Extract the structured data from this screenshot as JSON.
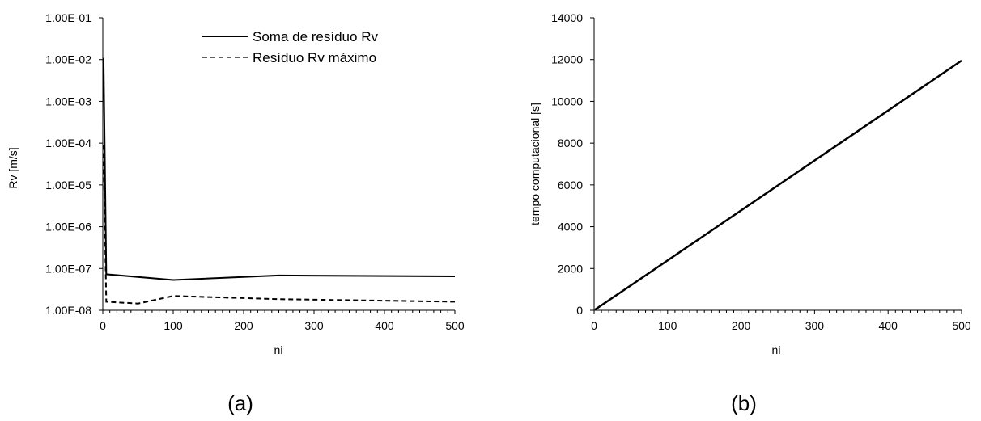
{
  "chart_data": [
    {
      "type": "line",
      "caption": "(a)",
      "xlabel": "ni",
      "ylabel": "Rv [m/s]",
      "xlim": [
        0,
        500
      ],
      "xticks": [
        0,
        100,
        200,
        300,
        400,
        500
      ],
      "yscale": "log",
      "ylim": [
        1e-08,
        0.1
      ],
      "yticks": [
        1e-08,
        1e-07,
        1e-06,
        1e-05,
        0.0001,
        0.001,
        0.01,
        0.1
      ],
      "ytick_labels": [
        "1.00E-08",
        "1.00E-07",
        "1.00E-06",
        "1.00E-05",
        "1.00E-04",
        "1.00E-03",
        "1.00E-02",
        "1.00E-01"
      ],
      "legend_position": "top-right",
      "series": [
        {
          "name": "Soma de resíduo Rv",
          "style": "solid",
          "x": [
            1,
            5,
            100,
            250,
            500
          ],
          "y": [
            0.011,
            7.3e-08,
            5.3e-08,
            6.8e-08,
            6.5e-08
          ]
        },
        {
          "name": "Resíduo Rv máximo",
          "style": "dashed",
          "x": [
            1,
            5,
            50,
            100,
            250,
            500
          ],
          "y": [
            9e-05,
            1.6e-08,
            1.45e-08,
            2.2e-08,
            1.85e-08,
            1.6e-08
          ]
        }
      ]
    },
    {
      "type": "line",
      "caption": "(b)",
      "xlabel": "ni",
      "ylabel": "tempo computacional [s]",
      "xlim": [
        0,
        500
      ],
      "xticks": [
        0,
        100,
        200,
        300,
        400,
        500
      ],
      "ylim": [
        0,
        14000
      ],
      "yticks": [
        0,
        2000,
        4000,
        6000,
        8000,
        10000,
        12000,
        14000
      ],
      "series": [
        {
          "style": "solid",
          "x": [
            1,
            500
          ],
          "y": [
            24,
            11950
          ]
        }
      ]
    }
  ]
}
